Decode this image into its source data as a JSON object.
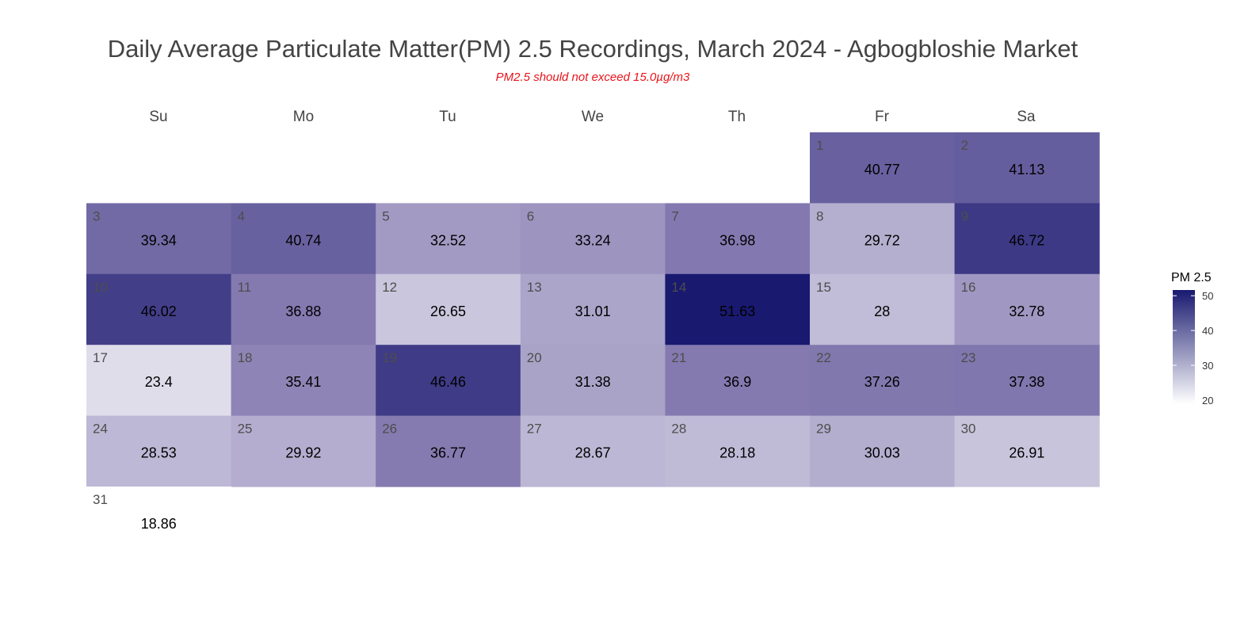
{
  "chart_data": {
    "type": "heatmap",
    "title": "Daily Average Particulate Matter(PM) 2.5 Recordings, March 2024 - Agbogbloshie Market",
    "subtitle": "PM2.5 should not exceed 15.0µg/m3",
    "weekdays": [
      "Su",
      "Mo",
      "Tu",
      "We",
      "Th",
      "Fr",
      "Sa"
    ],
    "first_weekday_index": 5,
    "days": [
      {
        "day": "1",
        "value": 40.77,
        "label": "40.77"
      },
      {
        "day": "2",
        "value": 41.13,
        "label": "41.13"
      },
      {
        "day": "3",
        "value": 39.34,
        "label": "39.34"
      },
      {
        "day": "4",
        "value": 40.74,
        "label": "40.74"
      },
      {
        "day": "5",
        "value": 32.52,
        "label": "32.52"
      },
      {
        "day": "6",
        "value": 33.24,
        "label": "33.24"
      },
      {
        "day": "7",
        "value": 36.98,
        "label": "36.98"
      },
      {
        "day": "8",
        "value": 29.72,
        "label": "29.72"
      },
      {
        "day": "9",
        "value": 46.72,
        "label": "46.72"
      },
      {
        "day": "10",
        "value": 46.02,
        "label": "46.02"
      },
      {
        "day": "11",
        "value": 36.88,
        "label": "36.88"
      },
      {
        "day": "12",
        "value": 26.65,
        "label": "26.65"
      },
      {
        "day": "13",
        "value": 31.01,
        "label": "31.01"
      },
      {
        "day": "14",
        "value": 51.63,
        "label": "51.63"
      },
      {
        "day": "15",
        "value": 28,
        "label": "28"
      },
      {
        "day": "16",
        "value": 32.78,
        "label": "32.78"
      },
      {
        "day": "17",
        "value": 23.4,
        "label": "23.4"
      },
      {
        "day": "18",
        "value": 35.41,
        "label": "35.41"
      },
      {
        "day": "19",
        "value": 46.46,
        "label": "46.46"
      },
      {
        "day": "20",
        "value": 31.38,
        "label": "31.38"
      },
      {
        "day": "21",
        "value": 36.9,
        "label": "36.9"
      },
      {
        "day": "22",
        "value": 37.26,
        "label": "37.26"
      },
      {
        "day": "23",
        "value": 37.38,
        "label": "37.38"
      },
      {
        "day": "24",
        "value": 28.53,
        "label": "28.53"
      },
      {
        "day": "25",
        "value": 29.92,
        "label": "29.92"
      },
      {
        "day": "26",
        "value": 36.77,
        "label": "36.77"
      },
      {
        "day": "27",
        "value": 28.67,
        "label": "28.67"
      },
      {
        "day": "28",
        "value": 28.18,
        "label": "28.18"
      },
      {
        "day": "29",
        "value": 30.03,
        "label": "30.03"
      },
      {
        "day": "30",
        "value": 26.91,
        "label": "26.91"
      },
      {
        "day": "31",
        "value": 18.86,
        "label": "18.86"
      }
    ],
    "legend": {
      "title": "PM 2.5",
      "placement": "right",
      "ticks": [
        20,
        30,
        40,
        50
      ],
      "tick_labels": [
        "20",
        "30",
        "40",
        "50"
      ],
      "range": [
        18.86,
        51.63
      ]
    },
    "color_scale": {
      "low": "#ffffff",
      "high": "#191970",
      "domain": [
        18.86,
        51.63
      ]
    }
  }
}
